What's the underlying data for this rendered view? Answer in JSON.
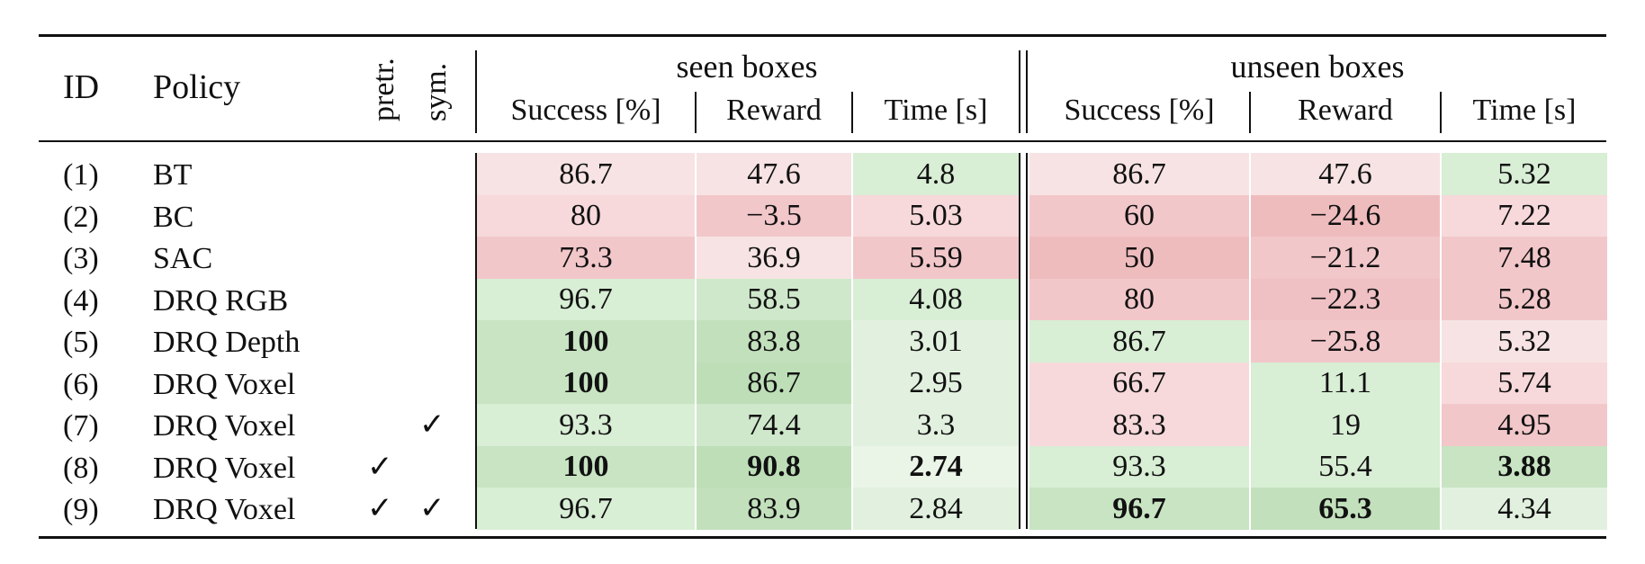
{
  "table": {
    "headers": {
      "id": "ID",
      "policy": "Policy",
      "pretr": "pretr.",
      "sym": "sym.",
      "group_seen": "seen boxes",
      "group_unseen": "unseen boxes",
      "success": "Success [%]",
      "reward": "Reward",
      "time": "Time [s]"
    },
    "check_mark": "✓",
    "rows": [
      {
        "id": "(1)",
        "policy": "BT",
        "pretr": false,
        "sym": false,
        "seen": [
          {
            "v": "86.7",
            "c": "#f7e3e3",
            "b": false
          },
          {
            "v": "47.6",
            "c": "#f7e3e3",
            "b": false
          },
          {
            "v": "4.8",
            "c": "#d8eed5",
            "b": false
          }
        ],
        "unseen": [
          {
            "v": "86.7",
            "c": "#f7e3e3",
            "b": false
          },
          {
            "v": "47.6",
            "c": "#f7e3e3",
            "b": false
          },
          {
            "v": "5.32",
            "c": "#d8eed5",
            "b": false
          }
        ]
      },
      {
        "id": "(2)",
        "policy": "BC",
        "pretr": false,
        "sym": false,
        "seen": [
          {
            "v": "80",
            "c": "#f7d9db",
            "b": false
          },
          {
            "v": "−3.5",
            "c": "#f2c7ca",
            "b": false
          },
          {
            "v": "5.03",
            "c": "#f7d9db",
            "b": false
          }
        ],
        "unseen": [
          {
            "v": "60",
            "c": "#f2c7ca",
            "b": false
          },
          {
            "v": "−24.6",
            "c": "#efbcbe",
            "b": false
          },
          {
            "v": "7.22",
            "c": "#f7d9db",
            "b": false
          }
        ]
      },
      {
        "id": "(3)",
        "policy": "SAC",
        "pretr": false,
        "sym": false,
        "seen": [
          {
            "v": "73.3",
            "c": "#f2c7ca",
            "b": false
          },
          {
            "v": "36.9",
            "c": "#f7e3e3",
            "b": false
          },
          {
            "v": "5.59",
            "c": "#f2c7ca",
            "b": false
          }
        ],
        "unseen": [
          {
            "v": "50",
            "c": "#efbcbe",
            "b": false
          },
          {
            "v": "−21.2",
            "c": "#f2c7ca",
            "b": false
          },
          {
            "v": "7.48",
            "c": "#f2c7ca",
            "b": false
          }
        ]
      },
      {
        "id": "(4)",
        "policy": "DRQ RGB",
        "pretr": false,
        "sym": false,
        "seen": [
          {
            "v": "96.7",
            "c": "#d8eed5",
            "b": false
          },
          {
            "v": "58.5",
            "c": "#cfe8cb",
            "b": false
          },
          {
            "v": "4.08",
            "c": "#d8eed5",
            "b": false
          }
        ],
        "unseen": [
          {
            "v": "80",
            "c": "#f2c7ca",
            "b": false
          },
          {
            "v": "−22.3",
            "c": "#f0c1c4",
            "b": false
          },
          {
            "v": "5.28",
            "c": "#f2c7ca",
            "b": false
          }
        ]
      },
      {
        "id": "(5)",
        "policy": "DRQ Depth",
        "pretr": false,
        "sym": false,
        "seen": [
          {
            "v": "100",
            "c": "#c8e4c3",
            "b": true
          },
          {
            "v": "83.8",
            "c": "#c2e0bc",
            "b": false
          },
          {
            "v": "3.01",
            "c": "#e2f1df",
            "b": false
          }
        ],
        "unseen": [
          {
            "v": "86.7",
            "c": "#d8eed5",
            "b": false
          },
          {
            "v": "−25.8",
            "c": "#f2c7ca",
            "b": false
          },
          {
            "v": "5.32",
            "c": "#f7e3e3",
            "b": false
          }
        ]
      },
      {
        "id": "(6)",
        "policy": "DRQ Voxel",
        "pretr": false,
        "sym": false,
        "seen": [
          {
            "v": "100",
            "c": "#c8e4c3",
            "b": true
          },
          {
            "v": "86.7",
            "c": "#bddeb7",
            "b": false
          },
          {
            "v": "2.95",
            "c": "#e2f1df",
            "b": false
          }
        ],
        "unseen": [
          {
            "v": "66.7",
            "c": "#f7d9db",
            "b": false
          },
          {
            "v": "11.1",
            "c": "#d8eed5",
            "b": false
          },
          {
            "v": "5.74",
            "c": "#f7d9db",
            "b": false
          }
        ]
      },
      {
        "id": "(7)",
        "policy": "DRQ Voxel",
        "pretr": false,
        "sym": true,
        "seen": [
          {
            "v": "93.3",
            "c": "#d8eed5",
            "b": false
          },
          {
            "v": "74.4",
            "c": "#cfe8cb",
            "b": false
          },
          {
            "v": "3.3",
            "c": "#e2f1df",
            "b": false
          }
        ],
        "unseen": [
          {
            "v": "83.3",
            "c": "#f7d9db",
            "b": false
          },
          {
            "v": "19",
            "c": "#d8eed5",
            "b": false
          },
          {
            "v": "4.95",
            "c": "#f2c7ca",
            "b": false
          }
        ]
      },
      {
        "id": "(8)",
        "policy": "DRQ Voxel",
        "pretr": true,
        "sym": false,
        "seen": [
          {
            "v": "100",
            "c": "#c8e4c3",
            "b": true
          },
          {
            "v": "90.8",
            "c": "#bddeb7",
            "b": true
          },
          {
            "v": "2.74",
            "c": "#eaf5e8",
            "b": true
          }
        ],
        "unseen": [
          {
            "v": "93.3",
            "c": "#d8eed5",
            "b": false
          },
          {
            "v": "55.4",
            "c": "#d8eed5",
            "b": false
          },
          {
            "v": "3.88",
            "c": "#c8e4c3",
            "b": true
          }
        ]
      },
      {
        "id": "(9)",
        "policy": "DRQ Voxel",
        "pretr": true,
        "sym": true,
        "seen": [
          {
            "v": "96.7",
            "c": "#d8eed5",
            "b": false
          },
          {
            "v": "83.9",
            "c": "#c2e0bc",
            "b": false
          },
          {
            "v": "2.84",
            "c": "#e2f1df",
            "b": false
          }
        ],
        "unseen": [
          {
            "v": "96.7",
            "c": "#c8e4c3",
            "b": true
          },
          {
            "v": "65.3",
            "c": "#c2e0bc",
            "b": true
          },
          {
            "v": "4.34",
            "c": "#e2f1df",
            "b": false
          }
        ]
      }
    ]
  }
}
